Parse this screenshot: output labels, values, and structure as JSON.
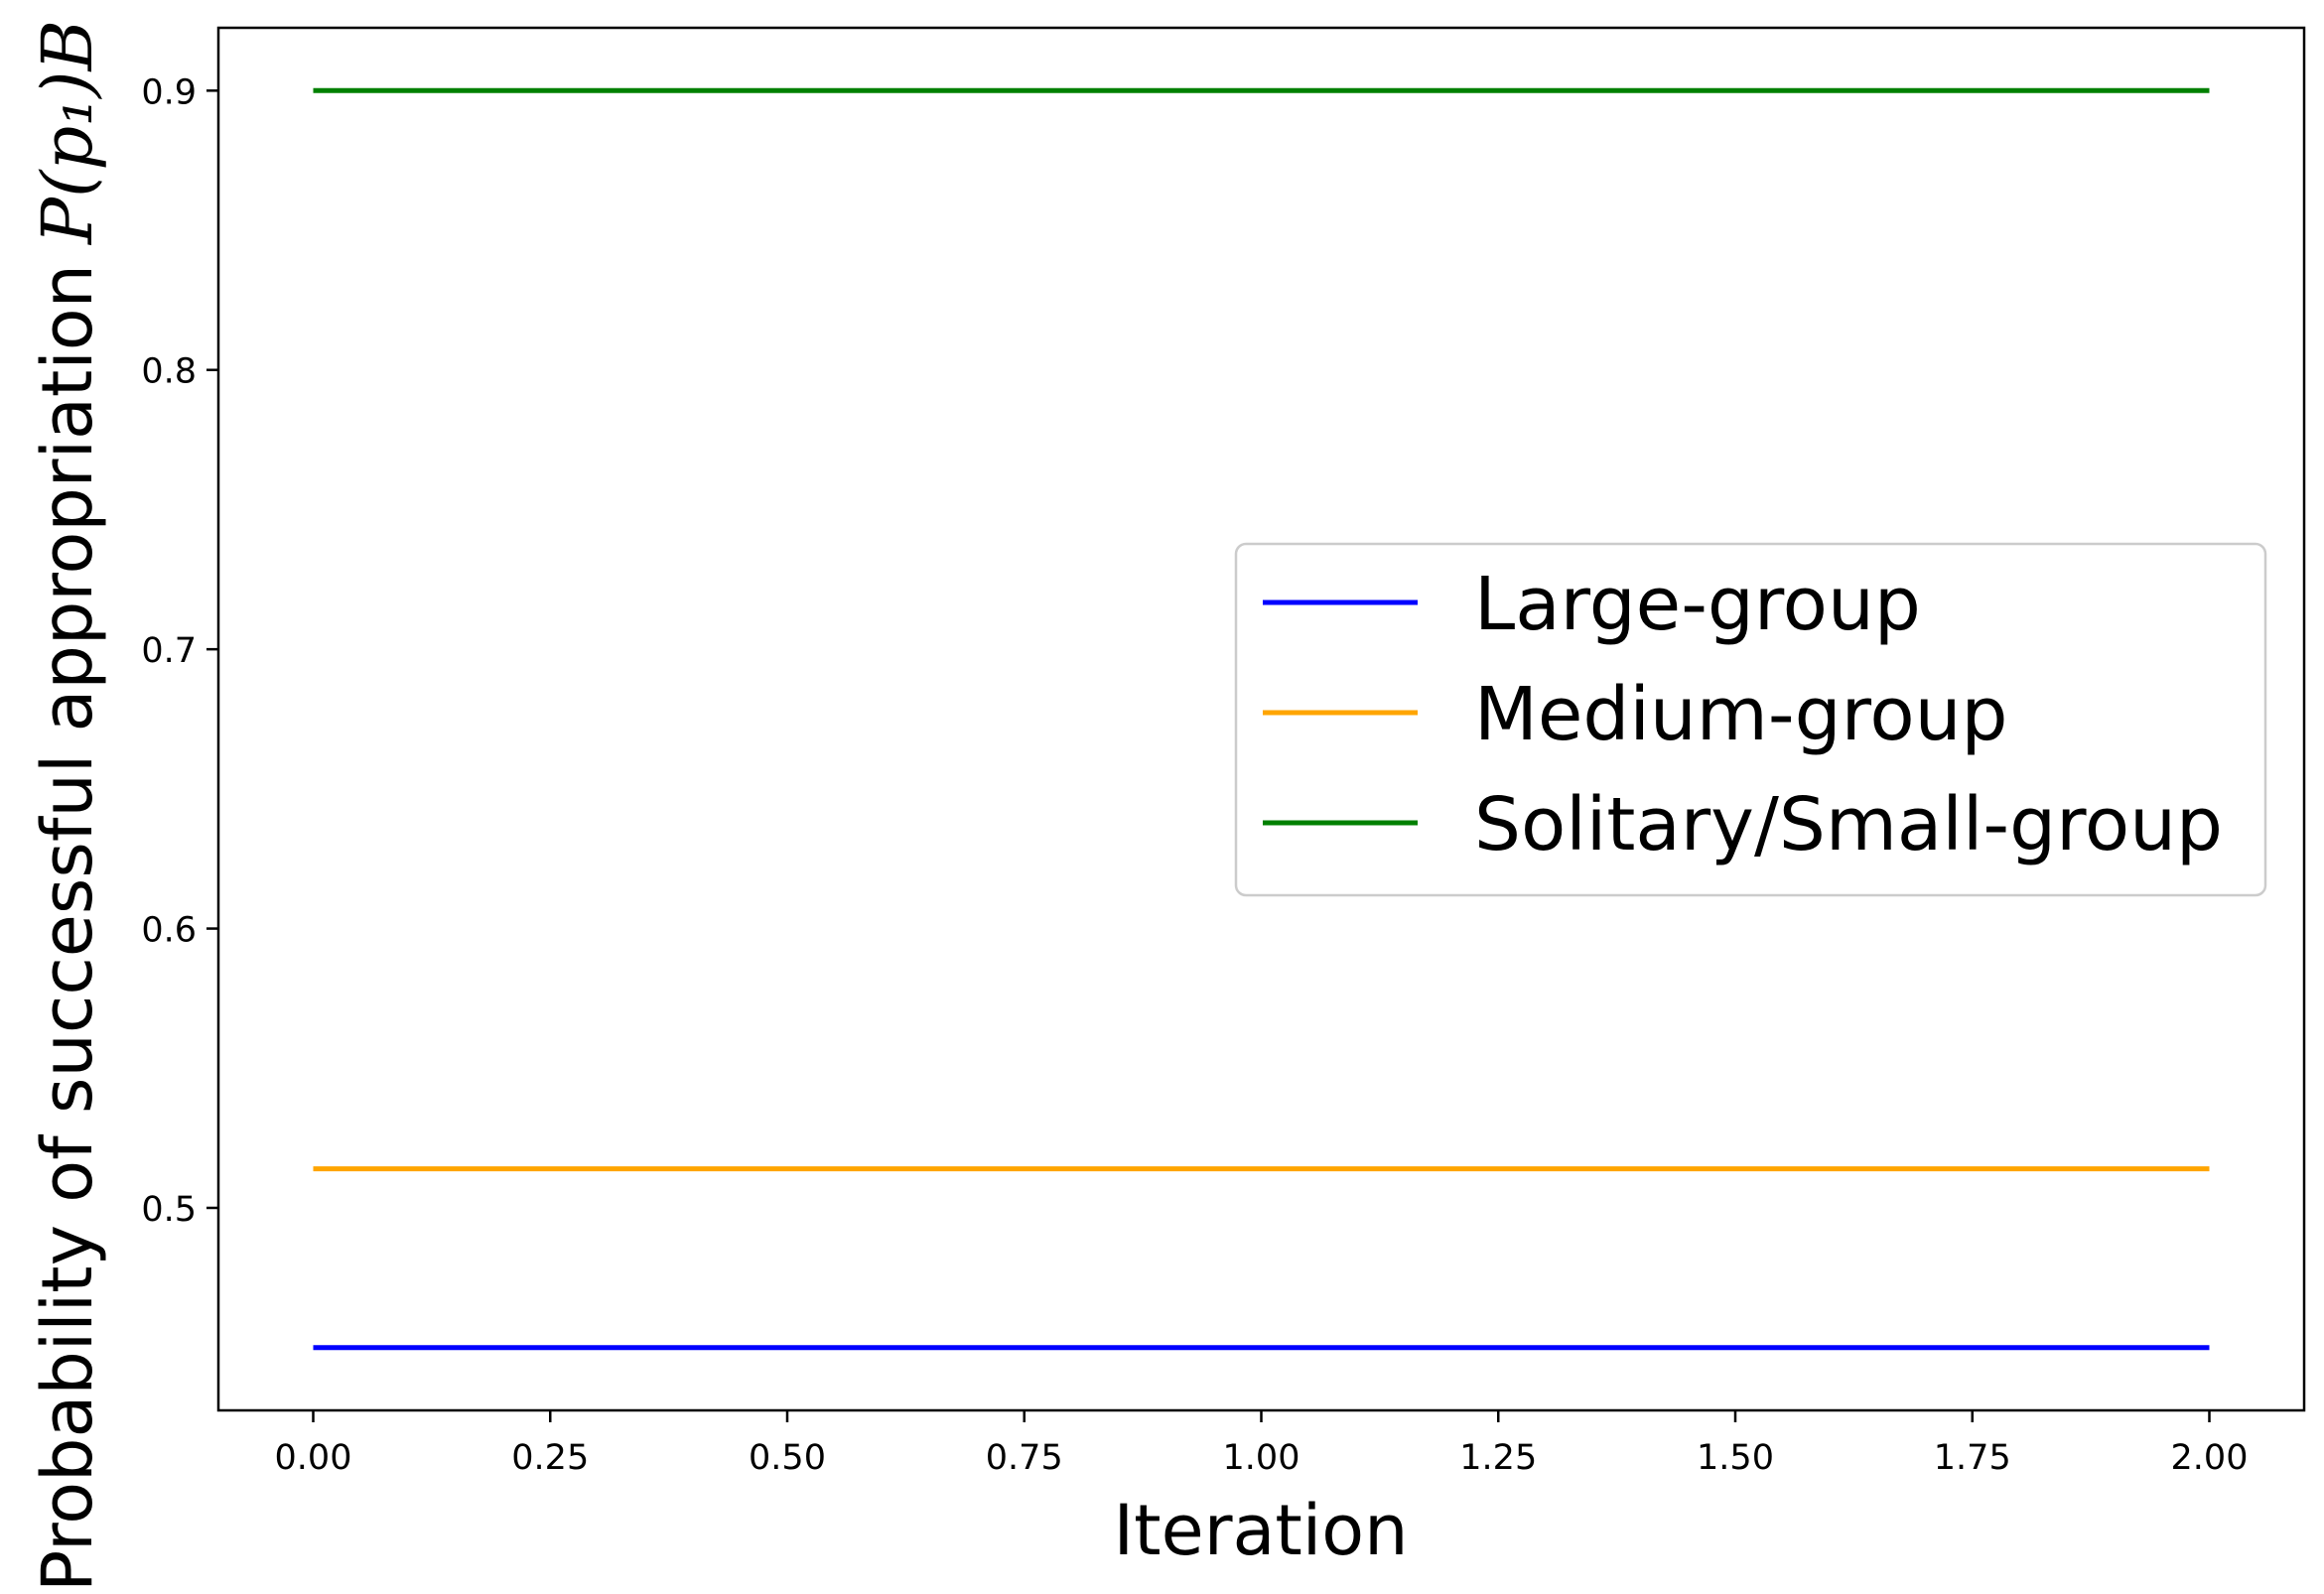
{
  "chart_data": {
    "type": "line",
    "title": "",
    "xlabel": "Iteration",
    "ylabel_text": "Probability of successful appropriation",
    "ylabel_math": "P(p₁)B",
    "x": [
      0.0,
      2.0
    ],
    "xlim": [
      -0.1,
      2.1
    ],
    "ylim": [
      0.4275,
      0.9225
    ],
    "xticks": [
      0.0,
      0.25,
      0.5,
      0.75,
      1.0,
      1.25,
      1.5,
      1.75,
      2.0
    ],
    "xtick_labels": [
      "0.00",
      "0.25",
      "0.50",
      "0.75",
      "1.00",
      "1.25",
      "1.50",
      "1.75",
      "2.00"
    ],
    "yticks": [
      0.5,
      0.6,
      0.7,
      0.8,
      0.9
    ],
    "ytick_labels": [
      "0.5",
      "0.6",
      "0.7",
      "0.8",
      "0.9"
    ],
    "grid": false,
    "legend_position": "center-right",
    "series": [
      {
        "name": "Large-group",
        "color": "#0000ff",
        "values": [
          0.45,
          0.45
        ]
      },
      {
        "name": "Medium-group",
        "color": "#ffa500",
        "values": [
          0.514,
          0.514
        ]
      },
      {
        "name": "Solitary/Small-group",
        "color": "#008000",
        "values": [
          0.9,
          0.9
        ]
      }
    ]
  }
}
